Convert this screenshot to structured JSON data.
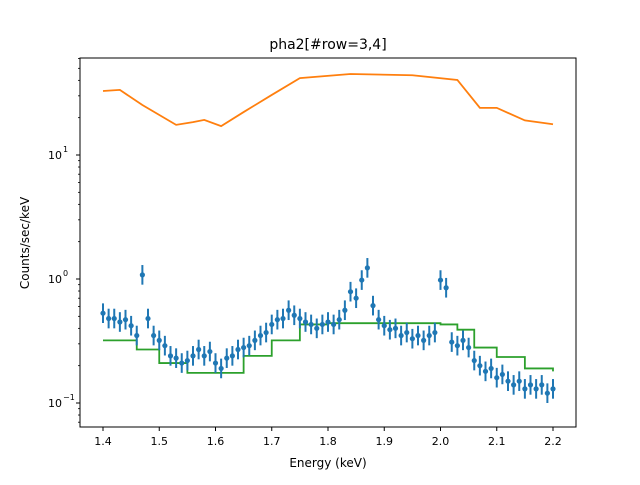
{
  "chart_data": {
    "type": "scatter",
    "title": "pha2[#row=3,4]",
    "xlabel": "Energy (keV)",
    "ylabel": "Counts/sec/keV",
    "xlim": [
      1.36,
      2.24
    ],
    "ylim": [
      0.064,
      60
    ],
    "yscale": "log",
    "grid": false,
    "xticks": [
      "1.4",
      "1.5",
      "1.6",
      "1.7",
      "1.8",
      "1.9",
      "2.0",
      "2.1",
      "2.2"
    ],
    "yticks": [
      {
        "value": 0.1,
        "base": "10",
        "exp": "−1"
      },
      {
        "value": 1,
        "base": "10",
        "exp": "0"
      },
      {
        "value": 10,
        "base": "10",
        "exp": "1"
      }
    ],
    "colors": {
      "data": "#1f77b4",
      "model": "#2ca02c",
      "source": "#ff7f0e"
    },
    "series": [
      {
        "kind": "data-with-errors",
        "x": [
          1.4,
          1.41,
          1.42,
          1.43,
          1.44,
          1.45,
          1.46,
          1.47,
          1.48,
          1.49,
          1.5,
          1.51,
          1.52,
          1.53,
          1.54,
          1.55,
          1.56,
          1.57,
          1.58,
          1.59,
          1.6,
          1.61,
          1.62,
          1.63,
          1.64,
          1.65,
          1.66,
          1.67,
          1.68,
          1.69,
          1.7,
          1.71,
          1.72,
          1.73,
          1.74,
          1.75,
          1.76,
          1.77,
          1.78,
          1.79,
          1.8,
          1.81,
          1.82,
          1.83,
          1.84,
          1.85,
          1.86,
          1.87,
          1.88,
          1.89,
          1.9,
          1.91,
          1.92,
          1.93,
          1.94,
          1.95,
          1.96,
          1.97,
          1.98,
          1.99,
          2.0,
          2.01,
          2.02,
          2.03,
          2.04,
          2.05,
          2.06,
          2.07,
          2.08,
          2.09,
          2.1,
          2.11,
          2.12,
          2.13,
          2.14,
          2.15,
          2.16,
          2.17,
          2.18,
          2.19,
          2.2
        ],
        "y": [
          0.53,
          0.48,
          0.48,
          0.45,
          0.47,
          0.42,
          0.35,
          1.08,
          0.48,
          0.35,
          0.32,
          0.29,
          0.24,
          0.23,
          0.21,
          0.22,
          0.24,
          0.27,
          0.24,
          0.26,
          0.21,
          0.19,
          0.23,
          0.24,
          0.27,
          0.28,
          0.29,
          0.32,
          0.35,
          0.37,
          0.43,
          0.47,
          0.48,
          0.56,
          0.51,
          0.48,
          0.45,
          0.43,
          0.4,
          0.43,
          0.45,
          0.43,
          0.47,
          0.56,
          0.79,
          0.7,
          0.98,
          1.23,
          0.61,
          0.47,
          0.42,
          0.39,
          0.4,
          0.35,
          0.37,
          0.33,
          0.35,
          0.32,
          0.35,
          0.37,
          0.98,
          0.85,
          0.31,
          0.29,
          0.32,
          0.28,
          0.22,
          0.2,
          0.18,
          0.19,
          0.16,
          0.17,
          0.15,
          0.14,
          0.15,
          0.13,
          0.14,
          0.13,
          0.14,
          0.12,
          0.13
        ]
      },
      {
        "kind": "model-step",
        "x": [
          1.4,
          1.43,
          1.46,
          1.5,
          1.55,
          1.6,
          1.65,
          1.7,
          1.75,
          1.8,
          1.9,
          2.0,
          2.03,
          2.06,
          2.1,
          2.15,
          2.2
        ],
        "y": [
          0.32,
          0.32,
          0.27,
          0.21,
          0.175,
          0.175,
          0.24,
          0.32,
          0.43,
          0.44,
          0.44,
          0.43,
          0.39,
          0.28,
          0.235,
          0.19,
          0.18
        ]
      },
      {
        "kind": "line",
        "x": [
          1.4,
          1.43,
          1.47,
          1.53,
          1.56,
          1.58,
          1.61,
          1.65,
          1.7,
          1.75,
          1.84,
          1.95,
          2.03,
          2.07,
          2.1,
          2.15,
          2.2
        ],
        "y": [
          32.8,
          33.5,
          25.3,
          17.5,
          18.4,
          19.2,
          17.1,
          22.2,
          30.5,
          41.7,
          45,
          44,
          40.3,
          24,
          24,
          19,
          17.7
        ]
      }
    ]
  }
}
